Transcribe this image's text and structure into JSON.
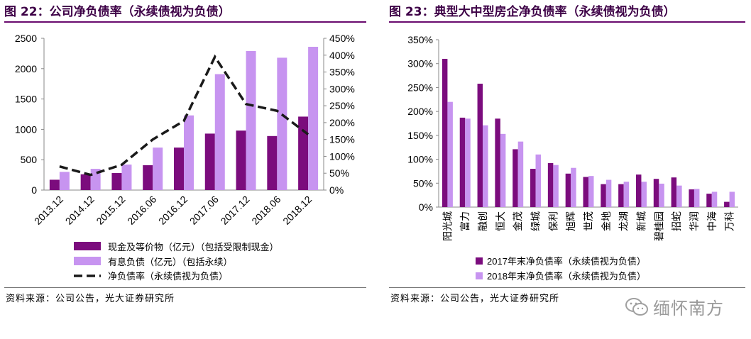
{
  "left": {
    "title": "图 22：公司净负债率（永续债视为负债）",
    "source": "资料来源：公司公告，光大证券研究所"
  },
  "right": {
    "title": "图 23：典型大中型房企净负债率（永续债视为负债）",
    "source": "资料来源：公司公告，光大证券研究所"
  },
  "watermark": {
    "text": "缅怀南方",
    "icon": "wechat-icon"
  },
  "colors": {
    "dark": "#7b0c7d",
    "light": "#c794f0",
    "line": "#1a1a1a",
    "title": "#3d0046"
  },
  "chart_data": [
    {
      "type": "bar",
      "categories": [
        "2013.12",
        "2014.12",
        "2015.12",
        "2016.06",
        "2016.12",
        "2017.06",
        "2017.12",
        "2018.06",
        "2018.12"
      ],
      "series": [
        {
          "name": "现金及等价物（亿元）（包括受限制现金）",
          "type": "bar",
          "axis": "left",
          "values": [
            170,
            260,
            280,
            410,
            700,
            930,
            980,
            890,
            1210
          ]
        },
        {
          "name": "有息负债（亿元）（包括永续）",
          "type": "bar",
          "axis": "left",
          "values": [
            300,
            350,
            420,
            700,
            1230,
            1910,
            2290,
            2180,
            2360
          ]
        },
        {
          "name": "净负债率（永续债视为负债）",
          "type": "line",
          "axis": "right",
          "values": [
            70,
            45,
            75,
            150,
            205,
            395,
            255,
            235,
            165
          ]
        }
      ],
      "ylim": [
        0,
        2500
      ],
      "y_ticks": [
        "0",
        "500",
        "1000",
        "1500",
        "2000",
        "2500"
      ],
      "y2lim": [
        0,
        450
      ],
      "y2_ticks": [
        "0%",
        "50%",
        "100%",
        "150%",
        "200%",
        "250%",
        "300%",
        "350%",
        "400%",
        "450%"
      ],
      "legend_position": "bottom"
    },
    {
      "type": "bar",
      "categories": [
        "阳光城",
        "富力",
        "融创",
        "恒大",
        "金茂",
        "绿城",
        "保利",
        "旭辉",
        "世茂",
        "金地",
        "龙湖",
        "新城",
        "碧桂园",
        "招蛇",
        "华润",
        "中海",
        "万科"
      ],
      "series": [
        {
          "name": "2017年末净负债率（永续债视为负债）",
          "values": [
            310,
            187,
            258,
            185,
            121,
            80,
            92,
            70,
            63,
            48,
            48,
            68,
            59,
            62,
            37,
            28,
            11
          ]
        },
        {
          "name": "2018年末净负债率（永续债视为负债）",
          "values": [
            220,
            185,
            171,
            153,
            137,
            110,
            88,
            82,
            65,
            57,
            53,
            53,
            49,
            45,
            38,
            32,
            32
          ]
        }
      ],
      "ylim": [
        0,
        350
      ],
      "y_ticks": [
        "0%",
        "50%",
        "100%",
        "150%",
        "200%",
        "250%",
        "300%",
        "350%"
      ],
      "legend_position": "bottom"
    }
  ]
}
